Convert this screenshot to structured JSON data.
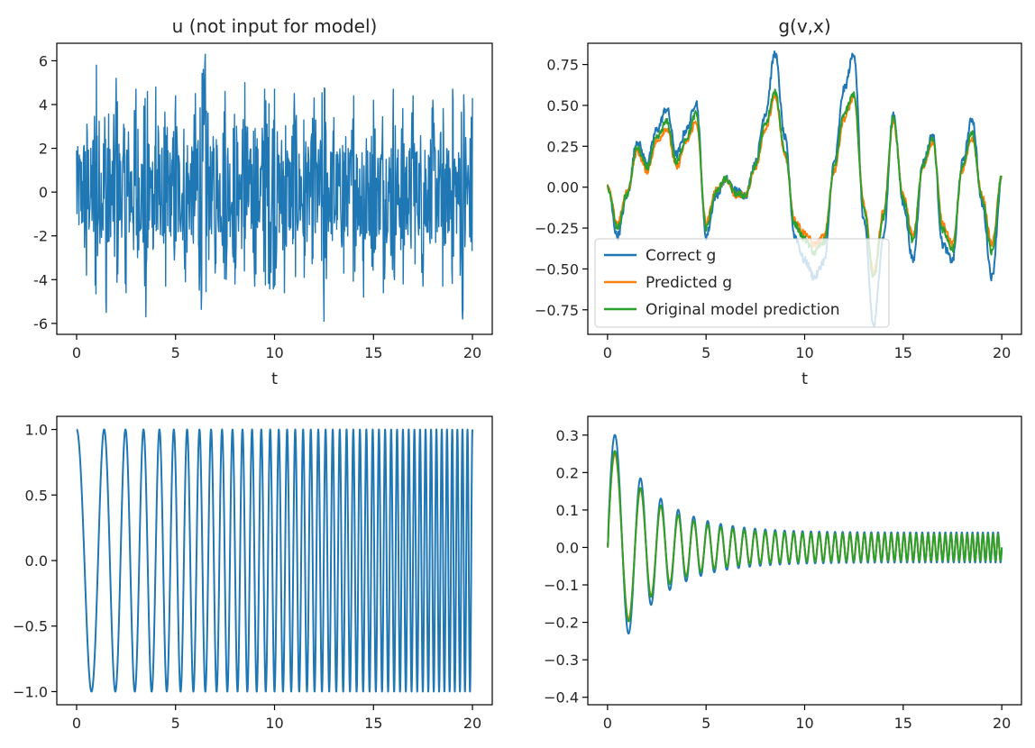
{
  "chart_data": [
    {
      "type": "line",
      "title": "u (not input for model)",
      "xlabel": "t",
      "ylabel": "",
      "xlim": [
        -1,
        21
      ],
      "ylim": [
        -6.5,
        6.8
      ],
      "xticks": [
        0,
        5,
        10,
        15,
        20
      ],
      "yticks": [
        -6,
        -4,
        -2,
        0,
        2,
        4,
        6
      ],
      "x_range": [
        0,
        20
      ],
      "description_of_data": "noisy random signal, roughly between -5.9 and 6.3",
      "series": [
        {
          "color": "#1f77b4",
          "x": [
            0,
            0.5,
            1,
            1.5,
            2,
            2.5,
            3,
            3.5,
            4,
            4.5,
            5,
            5.5,
            6,
            6.5,
            7,
            7.5,
            8,
            8.5,
            9,
            9.5,
            10,
            10.5,
            11,
            11.5,
            12,
            12.5,
            13,
            13.5,
            14,
            14.5,
            15,
            15.5,
            16,
            16.5,
            17,
            17.5,
            18,
            18.5,
            19,
            19.5,
            20
          ],
          "y": [
            1.9,
            -3.8,
            5.8,
            -5.5,
            5.2,
            -4.6,
            4.7,
            -5.7,
            4.8,
            -4.3,
            4.4,
            -4.1,
            4.5,
            6.3,
            -3.7,
            4.6,
            -4.2,
            5.0,
            -4.3,
            4.7,
            4.7,
            -4.6,
            4.5,
            -3.9,
            4.3,
            -5.9,
            3.4,
            -3.7,
            4.4,
            -4.8,
            4.2,
            -4.6,
            4.7,
            -4.2,
            4.4,
            -4.3,
            4.2,
            -4.3,
            4.7,
            -5.8,
            4.3
          ]
        }
      ]
    },
    {
      "type": "line",
      "title": "g(v,x)",
      "xlabel": "t",
      "ylabel": "",
      "xlim": [
        -1,
        21
      ],
      "ylim": [
        -0.9,
        0.88
      ],
      "xticks": [
        0,
        5,
        10,
        15,
        20
      ],
      "yticks": [
        -0.75,
        -0.5,
        -0.25,
        0.0,
        0.25,
        0.5,
        0.75
      ],
      "ytick_labels": [
        "−0.75",
        "−0.50",
        "−0.25",
        "0.00",
        "0.25",
        "0.50",
        "0.75"
      ],
      "legend": {
        "location": "lower-left",
        "entries": [
          "Correct g",
          "Predicted g",
          "Original model prediction"
        ]
      },
      "series": [
        {
          "name": "Correct g",
          "color": "#1f77b4",
          "x": [
            0,
            0.5,
            1,
            1.5,
            2,
            2.5,
            3,
            3.5,
            4,
            4.5,
            5,
            5.5,
            6,
            6.5,
            7,
            7.5,
            8,
            8.5,
            9,
            9.5,
            10,
            10.5,
            11,
            11.5,
            12,
            12.5,
            13,
            13.5,
            14,
            14.5,
            15,
            15.5,
            16,
            16.5,
            17,
            17.5,
            18,
            18.5,
            19,
            19.5,
            20
          ],
          "y": [
            0.0,
            -0.3,
            -0.05,
            0.28,
            0.15,
            0.35,
            0.48,
            0.2,
            0.35,
            0.52,
            -0.3,
            -0.05,
            0.05,
            -0.02,
            -0.05,
            0.15,
            0.45,
            0.82,
            0.3,
            -0.3,
            -0.45,
            -0.55,
            -0.45,
            0.15,
            0.6,
            0.82,
            -0.2,
            -0.85,
            -0.3,
            0.45,
            -0.1,
            -0.45,
            0.15,
            0.32,
            -0.35,
            -0.45,
            0.15,
            0.42,
            -0.1,
            -0.55,
            0.05
          ]
        },
        {
          "name": "Predicted g",
          "color": "#ff7f0e",
          "x": [
            0,
            0.5,
            1,
            1.5,
            2,
            2.5,
            3,
            3.5,
            4,
            4.5,
            5,
            5.5,
            6,
            6.5,
            7,
            7.5,
            8,
            8.5,
            9,
            9.5,
            10,
            10.5,
            11,
            11.5,
            12,
            12.5,
            13,
            13.5,
            14,
            14.5,
            15,
            15.5,
            16,
            16.5,
            17,
            17.5,
            18,
            18.5,
            19,
            19.5,
            20
          ],
          "y": [
            0.0,
            -0.22,
            -0.03,
            0.22,
            0.1,
            0.28,
            0.36,
            0.12,
            0.28,
            0.4,
            -0.22,
            -0.02,
            0.05,
            -0.05,
            -0.05,
            0.12,
            0.35,
            0.55,
            0.2,
            -0.2,
            -0.28,
            -0.35,
            -0.3,
            0.1,
            0.42,
            0.55,
            -0.1,
            -0.52,
            -0.15,
            0.4,
            -0.05,
            -0.3,
            0.12,
            0.28,
            -0.22,
            -0.35,
            0.1,
            0.3,
            -0.05,
            -0.35,
            0.06
          ]
        },
        {
          "name": "Original model prediction",
          "color": "#2ca02c",
          "x": [
            0,
            0.5,
            1,
            1.5,
            2,
            2.5,
            3,
            3.5,
            4,
            4.5,
            5,
            5.5,
            6,
            6.5,
            7,
            7.5,
            8,
            8.5,
            9,
            9.5,
            10,
            10.5,
            11,
            11.5,
            12,
            12.5,
            13,
            13.5,
            14,
            14.5,
            15,
            15.5,
            16,
            16.5,
            17,
            17.5,
            18,
            18.5,
            19,
            19.5,
            20
          ],
          "y": [
            0.0,
            -0.25,
            -0.04,
            0.24,
            0.12,
            0.3,
            0.4,
            0.15,
            0.3,
            0.45,
            -0.25,
            -0.03,
            0.05,
            -0.04,
            -0.05,
            0.13,
            0.38,
            0.58,
            0.22,
            -0.23,
            -0.32,
            -0.4,
            -0.33,
            0.12,
            0.45,
            0.57,
            -0.13,
            -0.55,
            -0.18,
            0.43,
            -0.07,
            -0.33,
            0.13,
            0.3,
            -0.26,
            -0.38,
            0.12,
            0.33,
            -0.07,
            -0.4,
            0.07
          ]
        }
      ]
    },
    {
      "type": "line",
      "title": "",
      "xlabel": "",
      "ylabel": "",
      "xlim": [
        -1,
        21
      ],
      "ylim": [
        -1.1,
        1.1
      ],
      "xticks": [
        0,
        5,
        10,
        15,
        20
      ],
      "yticks": [
        -1.0,
        -0.5,
        0.0,
        0.5,
        1.0
      ],
      "ytick_labels": [
        "−1.0",
        "−0.5",
        "0.0",
        "0.5",
        "1.0"
      ],
      "function": "cos(a*t^2 + b*t), chirp with frequency increasing from ~0.6 Hz to ~4 Hz",
      "series": [
        {
          "color": "#1f77b4",
          "chirp": {
            "amplitude": 1.0,
            "f0": 0.6,
            "f1": 4.0,
            "t0": 0,
            "t1": 20
          }
        }
      ]
    },
    {
      "type": "line",
      "title": "",
      "xlabel": "",
      "ylabel": "",
      "xlim": [
        -1,
        21
      ],
      "ylim": [
        -0.42,
        0.35
      ],
      "xticks": [
        0,
        5,
        10,
        15,
        20
      ],
      "yticks": [
        -0.4,
        -0.3,
        -0.2,
        -0.1,
        0.0,
        0.1,
        0.2,
        0.3
      ],
      "ytick_labels": [
        "−0.4",
        "−0.3",
        "−0.2",
        "−0.1",
        "0.0",
        "0.1",
        "0.2",
        "0.3"
      ],
      "function": "damped chirp, envelope decaying from ~0.35 to ~0.04",
      "series": [
        {
          "color": "#1f77b4",
          "chirp": {
            "amplitude": 0.35,
            "decay_to": 0.04,
            "f0": 0.6,
            "f1": 4.0,
            "t0": 0,
            "t1": 20,
            "sign": -1
          }
        },
        {
          "color": "#ff7f0e",
          "chirp": {
            "amplitude": 0.29,
            "decay_to": 0.035,
            "f0": 0.6,
            "f1": 4.0,
            "t0": 0,
            "t1": 20,
            "sign": -1
          }
        },
        {
          "color": "#2ca02c",
          "chirp": {
            "amplitude": 0.3,
            "decay_to": 0.035,
            "f0": 0.6,
            "f1": 4.0,
            "t0": 0,
            "t1": 20,
            "sign": -1
          }
        }
      ]
    }
  ]
}
